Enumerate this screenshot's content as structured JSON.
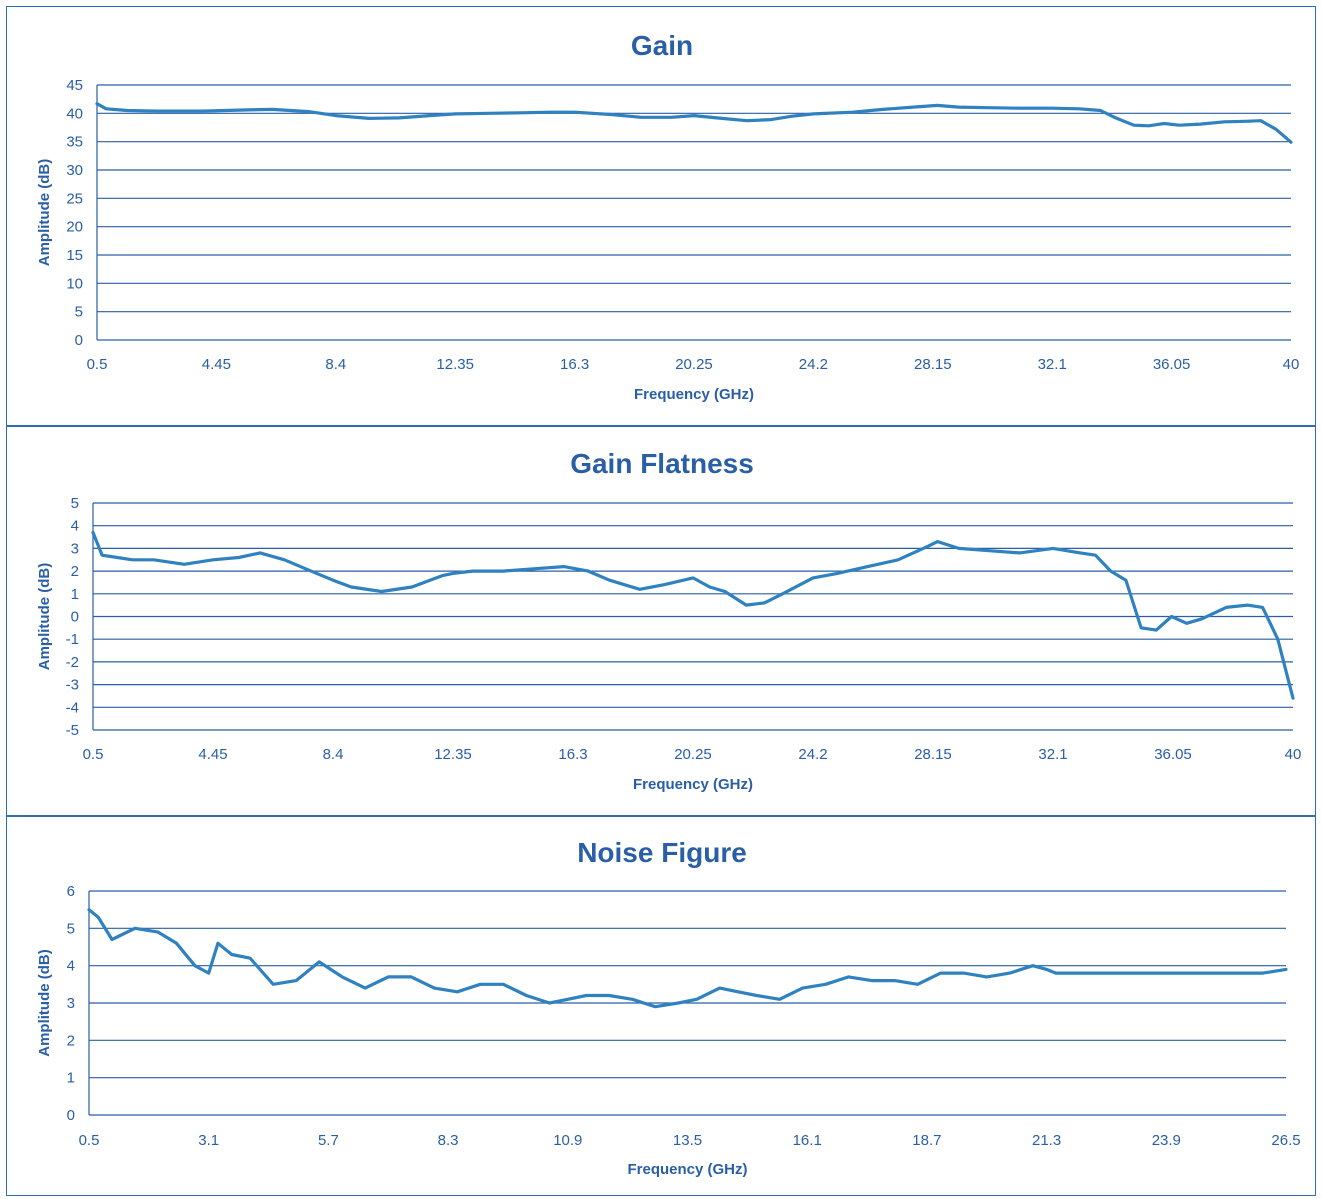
{
  "chart_data": [
    {
      "type": "line",
      "title": "Gain",
      "xlabel": "Frequency (GHz)",
      "ylabel": "Amplitude (dB)",
      "xlim": [
        0.5,
        40
      ],
      "ylim": [
        0,
        45
      ],
      "xticks": [
        "0.5",
        "4.45",
        "8.4",
        "12.35",
        "16.3",
        "20.25",
        "24.2",
        "28.15",
        "32.1",
        "36.05",
        "40"
      ],
      "yticks": [
        0,
        5,
        10,
        15,
        20,
        25,
        30,
        35,
        40,
        45
      ],
      "grid": true,
      "line_color": "#2f82bf",
      "series": [
        {
          "x": [
            0.5,
            0.8,
            1.5,
            2.5,
            4.0,
            5.5,
            6.3,
            7.5,
            8.4,
            9.5,
            10.5,
            11.5,
            12.35,
            13.5,
            14.5,
            15.5,
            16.3,
            17.5,
            18.5,
            19.5,
            20.25,
            21.0,
            22.0,
            22.8,
            23.5,
            24.2,
            25.5,
            26.5,
            27.5,
            28.3,
            29.0,
            30.0,
            31.0,
            32.1,
            33.0,
            33.7,
            34.2,
            34.8,
            35.3,
            35.8,
            36.3,
            37.0,
            37.8,
            38.5,
            39.0,
            39.5,
            40.0
          ],
          "y": [
            41.7,
            40.8,
            40.5,
            40.4,
            40.4,
            40.6,
            40.7,
            40.3,
            39.6,
            39.1,
            39.2,
            39.6,
            39.9,
            40.0,
            40.1,
            40.2,
            40.2,
            39.8,
            39.3,
            39.3,
            39.6,
            39.2,
            38.7,
            38.9,
            39.5,
            39.9,
            40.2,
            40.7,
            41.1,
            41.4,
            41.1,
            41.0,
            40.9,
            40.9,
            40.8,
            40.5,
            39.2,
            37.9,
            37.8,
            38.2,
            37.9,
            38.1,
            38.5,
            38.6,
            38.7,
            37.2,
            34.9
          ]
        }
      ]
    },
    {
      "type": "line",
      "title": "Gain Flatness",
      "xlabel": "Frequency (GHz)",
      "ylabel": "Amplitude (dB)",
      "xlim": [
        0.5,
        40
      ],
      "ylim": [
        -5,
        5
      ],
      "xticks": [
        "0.5",
        "4.45",
        "8.4",
        "12.35",
        "16.3",
        "20.25",
        "24.2",
        "28.15",
        "32.1",
        "36.05",
        "40"
      ],
      "yticks": [
        -5,
        -4,
        -3,
        -2,
        -1,
        0,
        1,
        2,
        3,
        4,
        5
      ],
      "grid": true,
      "line_color": "#2f82bf",
      "series": [
        {
          "x": [
            0.5,
            0.8,
            1.3,
            1.8,
            2.5,
            3.5,
            4.45,
            5.3,
            6.0,
            6.8,
            7.5,
            8.4,
            9.0,
            10.0,
            11.0,
            12.0,
            12.35,
            13.0,
            14.0,
            15.0,
            16.0,
            16.8,
            17.5,
            18.5,
            19.3,
            20.25,
            20.8,
            21.3,
            22.0,
            22.6,
            23.2,
            24.2,
            25.0,
            26.0,
            27.0,
            28.0,
            28.3,
            29.0,
            30.0,
            31.0,
            32.1,
            33.0,
            33.5,
            34.0,
            34.5,
            35.0,
            35.5,
            36.0,
            36.5,
            37.0,
            37.8,
            38.5,
            39.0,
            39.5,
            40.0
          ],
          "y": [
            3.7,
            2.7,
            2.6,
            2.5,
            2.5,
            2.3,
            2.5,
            2.6,
            2.8,
            2.5,
            2.1,
            1.6,
            1.3,
            1.1,
            1.3,
            1.8,
            1.9,
            2.0,
            2.0,
            2.1,
            2.2,
            2.0,
            1.6,
            1.2,
            1.4,
            1.7,
            1.3,
            1.1,
            0.5,
            0.6,
            1.0,
            1.7,
            1.9,
            2.2,
            2.5,
            3.1,
            3.3,
            3.0,
            2.9,
            2.8,
            3.0,
            2.8,
            2.7,
            2.0,
            1.6,
            -0.5,
            -0.6,
            0.0,
            -0.3,
            -0.1,
            0.4,
            0.5,
            0.4,
            -1.0,
            -3.6
          ]
        }
      ]
    },
    {
      "type": "line",
      "title": "Noise Figure",
      "xlabel": "Frequency (GHz)",
      "ylabel": "Amplitude (dB)",
      "xlim": [
        0.5,
        26.5
      ],
      "ylim": [
        0,
        6
      ],
      "xticks": [
        "0.5",
        "3.1",
        "5.7",
        "8.3",
        "10.9",
        "13.5",
        "16.1",
        "18.7",
        "21.3",
        "23.9",
        "26.5"
      ],
      "yticks": [
        0,
        1,
        2,
        3,
        4,
        5,
        6
      ],
      "grid": true,
      "line_color": "#2f82bf",
      "series": [
        {
          "x": [
            0.5,
            0.7,
            1.0,
            1.5,
            2.0,
            2.4,
            2.8,
            3.1,
            3.3,
            3.6,
            4.0,
            4.5,
            5.0,
            5.5,
            6.0,
            6.5,
            7.0,
            7.5,
            8.0,
            8.5,
            9.0,
            9.5,
            10.0,
            10.5,
            10.9,
            11.3,
            11.8,
            12.3,
            12.8,
            13.3,
            13.7,
            14.2,
            14.6,
            15.0,
            15.5,
            16.0,
            16.5,
            17.0,
            17.5,
            18.0,
            18.5,
            19.0,
            19.5,
            20.0,
            20.5,
            21.0,
            21.3,
            21.5,
            22.0,
            22.5,
            23.0,
            23.5,
            24.0,
            24.5,
            25.0,
            25.5,
            26.0,
            26.5
          ],
          "y": [
            5.5,
            5.3,
            4.7,
            5.0,
            4.9,
            4.6,
            4.0,
            3.8,
            4.6,
            4.3,
            4.2,
            3.5,
            3.6,
            4.1,
            3.7,
            3.4,
            3.7,
            3.7,
            3.4,
            3.3,
            3.5,
            3.5,
            3.2,
            3.0,
            3.1,
            3.2,
            3.2,
            3.1,
            2.9,
            3.0,
            3.1,
            3.4,
            3.3,
            3.2,
            3.1,
            3.4,
            3.5,
            3.7,
            3.6,
            3.6,
            3.5,
            3.8,
            3.8,
            3.7,
            3.8,
            4.0,
            3.9,
            3.8,
            3.8,
            3.8,
            3.8,
            3.8,
            3.8,
            3.8,
            3.8,
            3.8,
            3.8,
            3.9
          ]
        }
      ]
    }
  ]
}
